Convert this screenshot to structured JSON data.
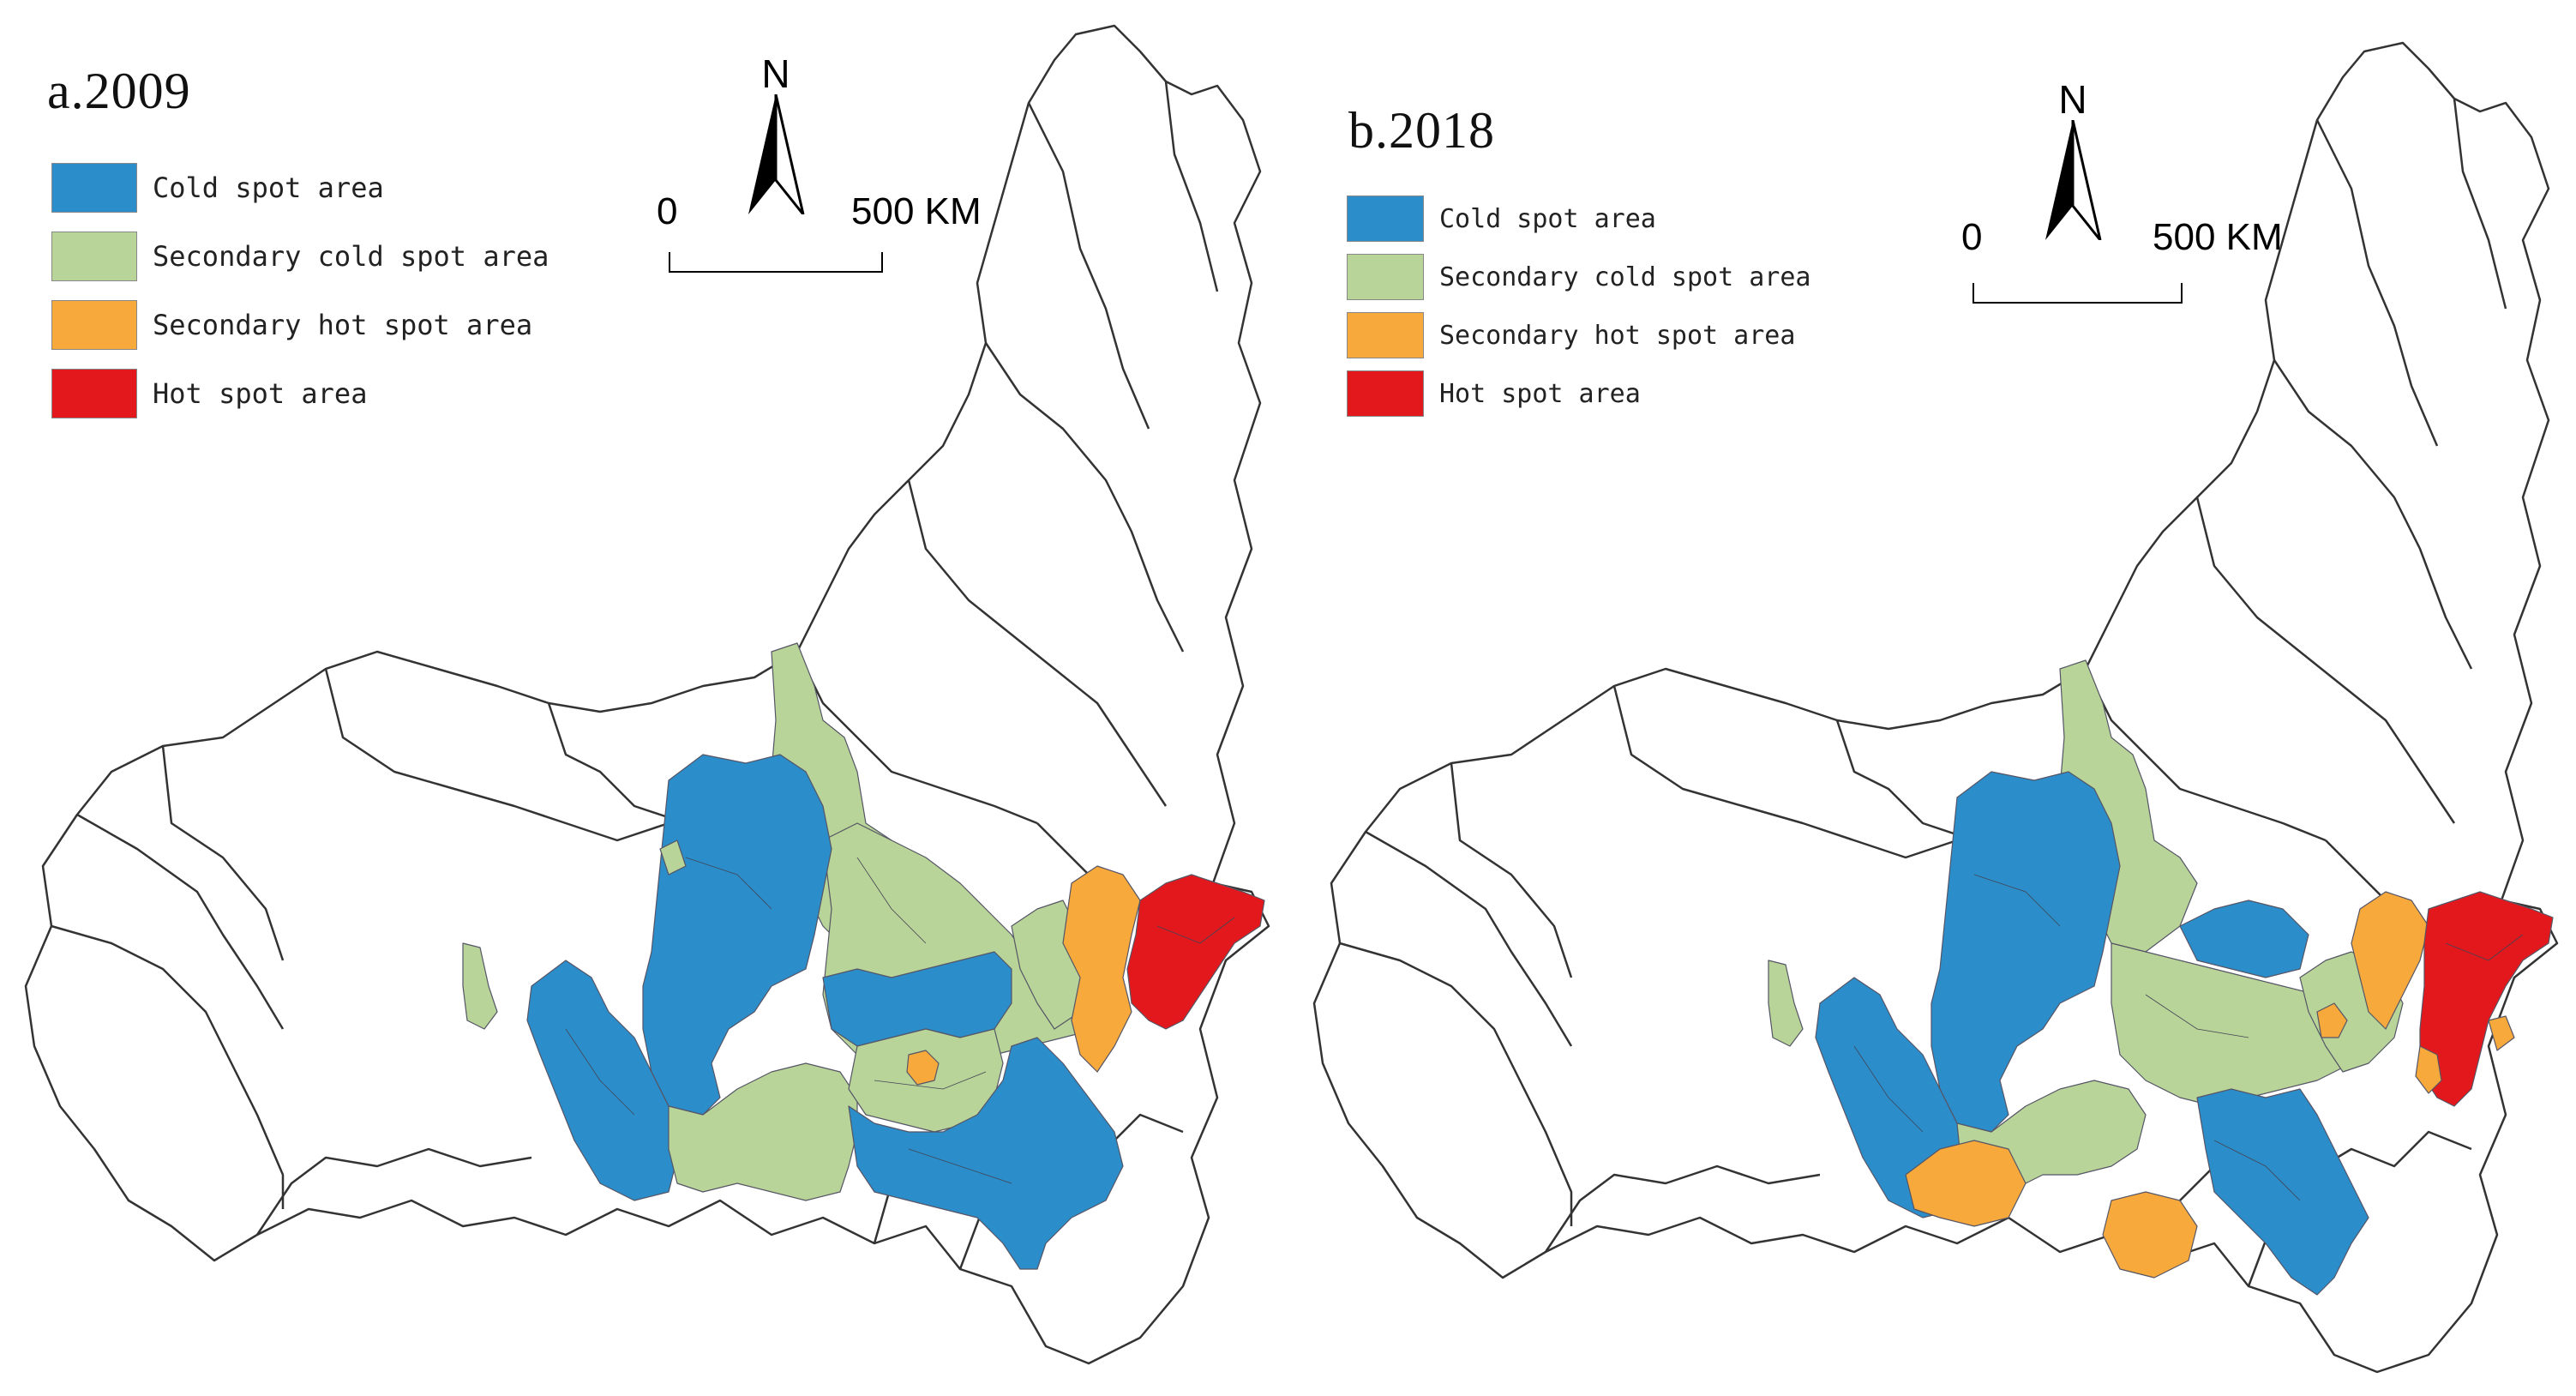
{
  "colors": {
    "cold": "#2b8dca",
    "secondary_cold": "#b8d498",
    "secondary_hot": "#f7a93c",
    "hot": "#e3181c",
    "boundary": "#333333",
    "background": "#ffffff"
  },
  "north_label": "N",
  "scale": {
    "start": "0",
    "end": "500 KM"
  },
  "legend": [
    {
      "key": "cold",
      "label": "Cold spot area"
    },
    {
      "key": "secondary_cold",
      "label": "Secondary cold spot area"
    },
    {
      "key": "secondary_hot",
      "label": "Secondary hot spot area"
    },
    {
      "key": "hot",
      "label": "Hot spot area"
    }
  ],
  "panels": [
    {
      "title": "a.2009",
      "year": "2009"
    },
    {
      "title": "b.2018",
      "year": "2018"
    }
  ],
  "icons": [
    "north-arrow-icon",
    "scale-bar"
  ]
}
